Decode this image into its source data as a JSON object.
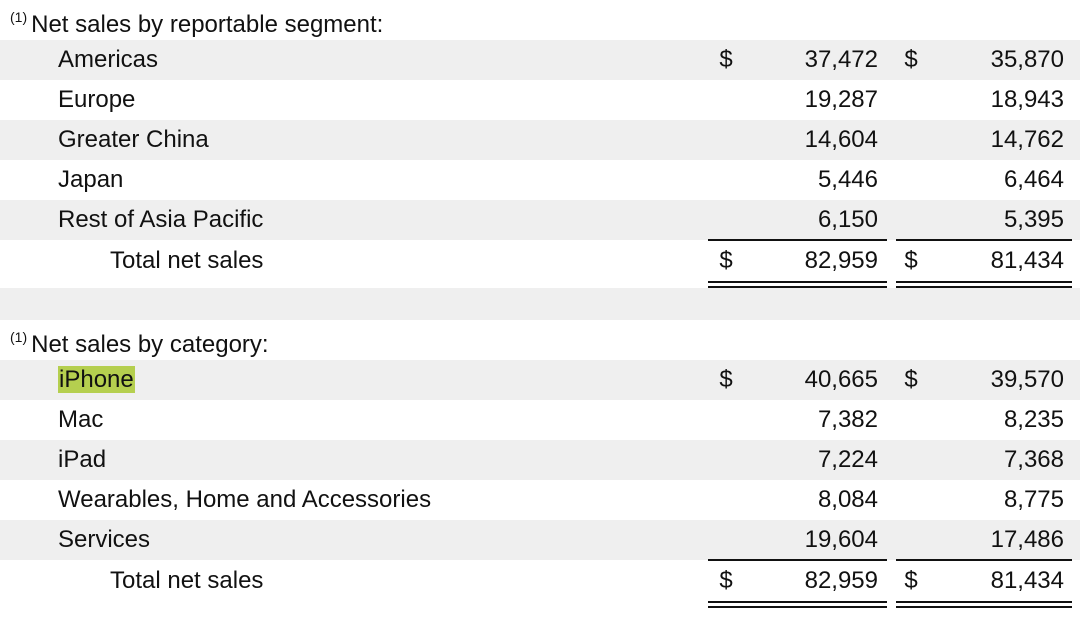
{
  "segment_section": {
    "footnote": "(1)",
    "heading": "Net sales by reportable segment:",
    "rows": [
      {
        "label": "Americas",
        "currency": "$",
        "value1": "37,472",
        "currency2": "$",
        "value2": "35,870"
      },
      {
        "label": "Europe",
        "currency": "",
        "value1": "19,287",
        "currency2": "",
        "value2": "18,943"
      },
      {
        "label": "Greater China",
        "currency": "",
        "value1": "14,604",
        "currency2": "",
        "value2": "14,762"
      },
      {
        "label": "Japan",
        "currency": "",
        "value1": "5,446",
        "currency2": "",
        "value2": "6,464"
      },
      {
        "label": "Rest of Asia Pacific",
        "currency": "",
        "value1": "6,150",
        "currency2": "",
        "value2": "5,395"
      }
    ],
    "total": {
      "label": "Total net sales",
      "currency": "$",
      "value1": "82,959",
      "currency2": "$",
      "value2": "81,434"
    }
  },
  "category_section": {
    "footnote": "(1)",
    "heading": "Net sales by category:",
    "rows": [
      {
        "label": "iPhone",
        "currency": "$",
        "value1": "40,665",
        "currency2": "$",
        "value2": "39,570"
      },
      {
        "label": "Mac",
        "currency": "",
        "value1": "7,382",
        "currency2": "",
        "value2": "8,235"
      },
      {
        "label": "iPad",
        "currency": "",
        "value1": "7,224",
        "currency2": "",
        "value2": "7,368"
      },
      {
        "label": "Wearables, Home and Accessories",
        "currency": "",
        "value1": "8,084",
        "currency2": "",
        "value2": "8,775"
      },
      {
        "label": "Services",
        "currency": "",
        "value1": "19,604",
        "currency2": "",
        "value2": "17,486"
      }
    ],
    "total": {
      "label": "Total net sales",
      "currency": "$",
      "value1": "82,959",
      "currency2": "$",
      "value2": "81,434"
    }
  },
  "highlight_color": "#b5cf4f"
}
